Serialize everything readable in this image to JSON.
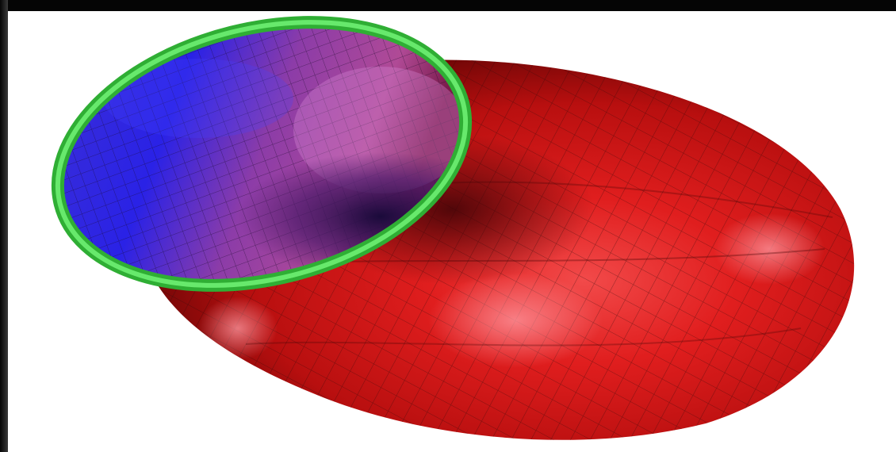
{
  "image": {
    "subject": "surface-render",
    "colors": {
      "background": "#ffffff",
      "frame": "#0b0b0b",
      "outer_surface": "#d41414",
      "outer_surface_dark": "#6e0606",
      "inner_surface_blue": "#2a22e6",
      "inner_surface_violet": "#a0328c",
      "rim": "#33d43a",
      "mesh": "#2a0a0a"
    }
  }
}
